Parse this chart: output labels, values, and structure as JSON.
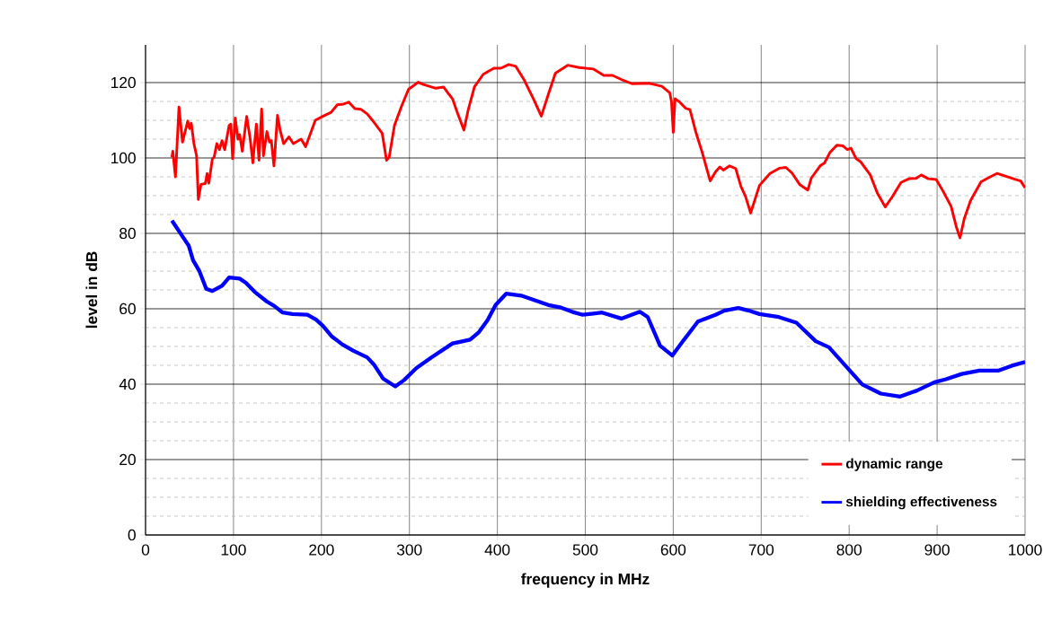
{
  "chart_data": {
    "type": "line",
    "xlabel": "frequency in MHz",
    "ylabel": "level in dB",
    "xlim": [
      0,
      1000
    ],
    "ylim": [
      0,
      130
    ],
    "xticks": [
      0,
      100,
      200,
      300,
      400,
      500,
      600,
      700,
      800,
      900,
      1000
    ],
    "yticks": [
      0,
      20,
      40,
      60,
      80,
      100,
      120
    ],
    "grid": true,
    "legend": "bottom right",
    "series": [
      {
        "name": "dynamic range",
        "color": "#ff0000",
        "x": [
          30,
          31,
          34,
          38,
          42,
          48,
          50,
          52,
          55,
          58,
          60,
          63,
          68,
          70,
          72,
          76,
          78,
          81,
          84,
          87,
          90,
          95,
          97,
          99,
          102,
          105,
          107,
          110,
          115,
          119,
          122,
          126,
          129,
          132,
          134,
          138,
          141,
          143,
          146,
          150,
          153,
          157,
          163,
          168,
          177,
          182,
          193,
          202,
          211,
          218,
          225,
          231,
          238,
          245,
          252,
          260,
          269,
          274,
          277,
          283,
          291,
          299,
          310,
          316,
          330,
          339,
          345,
          349,
          355,
          362,
          367,
          374,
          384,
          396,
          404,
          413,
          421,
          430,
          441,
          450,
          458,
          466,
          480,
          493,
          509,
          521,
          531,
          543,
          553,
          573,
          587,
          596,
          598,
          600,
          602,
          607,
          614,
          619,
          626,
          633,
          642,
          648,
          653,
          657,
          664,
          671,
          677,
          682,
          688,
          698,
          710,
          721,
          728,
          735,
          744,
          753,
          757,
          767,
          772,
          778,
          786,
          793,
          798,
          802,
          808,
          813,
          824,
          832,
          841,
          849,
          859,
          868,
          876,
          882,
          890,
          899,
          907,
          916,
          922,
          926,
          931,
          938,
          950,
          958,
          968,
          979,
          989,
          995,
          1000
        ],
        "values": [
          100.2,
          101.8,
          95,
          113.5,
          104.2,
          109.8,
          107.8,
          109.2,
          103.8,
          100.6,
          89,
          93,
          93.2,
          95.9,
          93.3,
          99.8,
          100.2,
          103.8,
          102.2,
          104.6,
          102.2,
          108.6,
          109,
          99.8,
          110.6,
          105,
          106.2,
          101.8,
          111,
          105,
          98.7,
          109,
          99.4,
          113,
          100.6,
          107,
          104.2,
          104.6,
          97.9,
          111.3,
          107.4,
          103.8,
          105.6,
          103.8,
          105,
          103,
          110,
          111.1,
          112.1,
          114.1,
          114.3,
          114.8,
          113.1,
          112.9,
          111.7,
          109.4,
          106.6,
          99.4,
          100.2,
          108.6,
          113.7,
          118.2,
          120.1,
          119.5,
          118.5,
          118.8,
          116.9,
          115.7,
          111.7,
          107.4,
          112.9,
          118.9,
          122.2,
          123.8,
          123.8,
          124.8,
          124.3,
          120.9,
          115.7,
          111.1,
          116.9,
          122.5,
          124.6,
          124,
          123.6,
          121.9,
          121.9,
          120.6,
          119.7,
          119.8,
          119,
          117.3,
          114.9,
          106.8,
          115.7,
          114.9,
          113.2,
          112.8,
          106.6,
          101.4,
          93.9,
          96.3,
          97.6,
          96.8,
          97.9,
          97.2,
          92.4,
          89.9,
          85.4,
          92.7,
          95.9,
          97.3,
          97.5,
          96,
          92.9,
          91.5,
          94.7,
          97.9,
          98.7,
          101.4,
          103.4,
          103.2,
          102.2,
          102.6,
          99.8,
          99,
          95.5,
          90.7,
          87,
          89.7,
          93.5,
          94.5,
          94.6,
          95.5,
          94.5,
          94.3,
          91.1,
          87.1,
          81.6,
          78.8,
          84,
          88.7,
          93.7,
          94.7,
          95.9,
          95.1,
          94.3,
          93.9,
          92.1
        ]
      },
      {
        "name": "shielding effectiveness",
        "color": "#0000ff",
        "x": [
          30,
          42,
          49,
          54,
          61,
          69,
          76,
          87,
          95,
          107,
          114,
          124,
          138,
          146,
          156,
          167,
          184,
          194,
          202,
          212,
          224,
          236,
          252,
          260,
          270,
          284,
          294,
          308,
          325,
          349,
          369,
          379,
          389,
          398,
          410,
          427,
          441,
          458,
          471,
          485,
          497,
          509,
          519,
          541,
          562,
          571,
          585,
          599,
          611,
          628,
          648,
          658,
          674,
          686,
          698,
          720,
          740,
          762,
          777,
          798,
          815,
          836,
          858,
          877,
          897,
          910,
          928,
          948,
          970,
          985,
          1000
        ],
        "values": [
          83.4,
          79.2,
          76.8,
          72.9,
          70.1,
          65.3,
          64.7,
          66.1,
          68.3,
          68,
          66.9,
          64.5,
          61.9,
          60.8,
          59,
          58.6,
          58.4,
          57.1,
          55.4,
          52.6,
          50.5,
          48.9,
          47.1,
          45.1,
          41.5,
          39.4,
          41.1,
          44.3,
          47.1,
          50.8,
          51.8,
          53.8,
          57,
          61,
          64,
          63.5,
          62.4,
          61,
          60.4,
          59.2,
          58.4,
          58.7,
          59,
          57.4,
          59.2,
          57.8,
          50.2,
          47.6,
          51.4,
          56.6,
          58.4,
          59.5,
          60.2,
          59.5,
          58.6,
          57.8,
          56.3,
          51.4,
          49.8,
          44.3,
          39.9,
          37.5,
          36.7,
          38.3,
          40.5,
          41.3,
          42.7,
          43.6,
          43.6,
          44.9,
          45.9
        ]
      }
    ]
  }
}
